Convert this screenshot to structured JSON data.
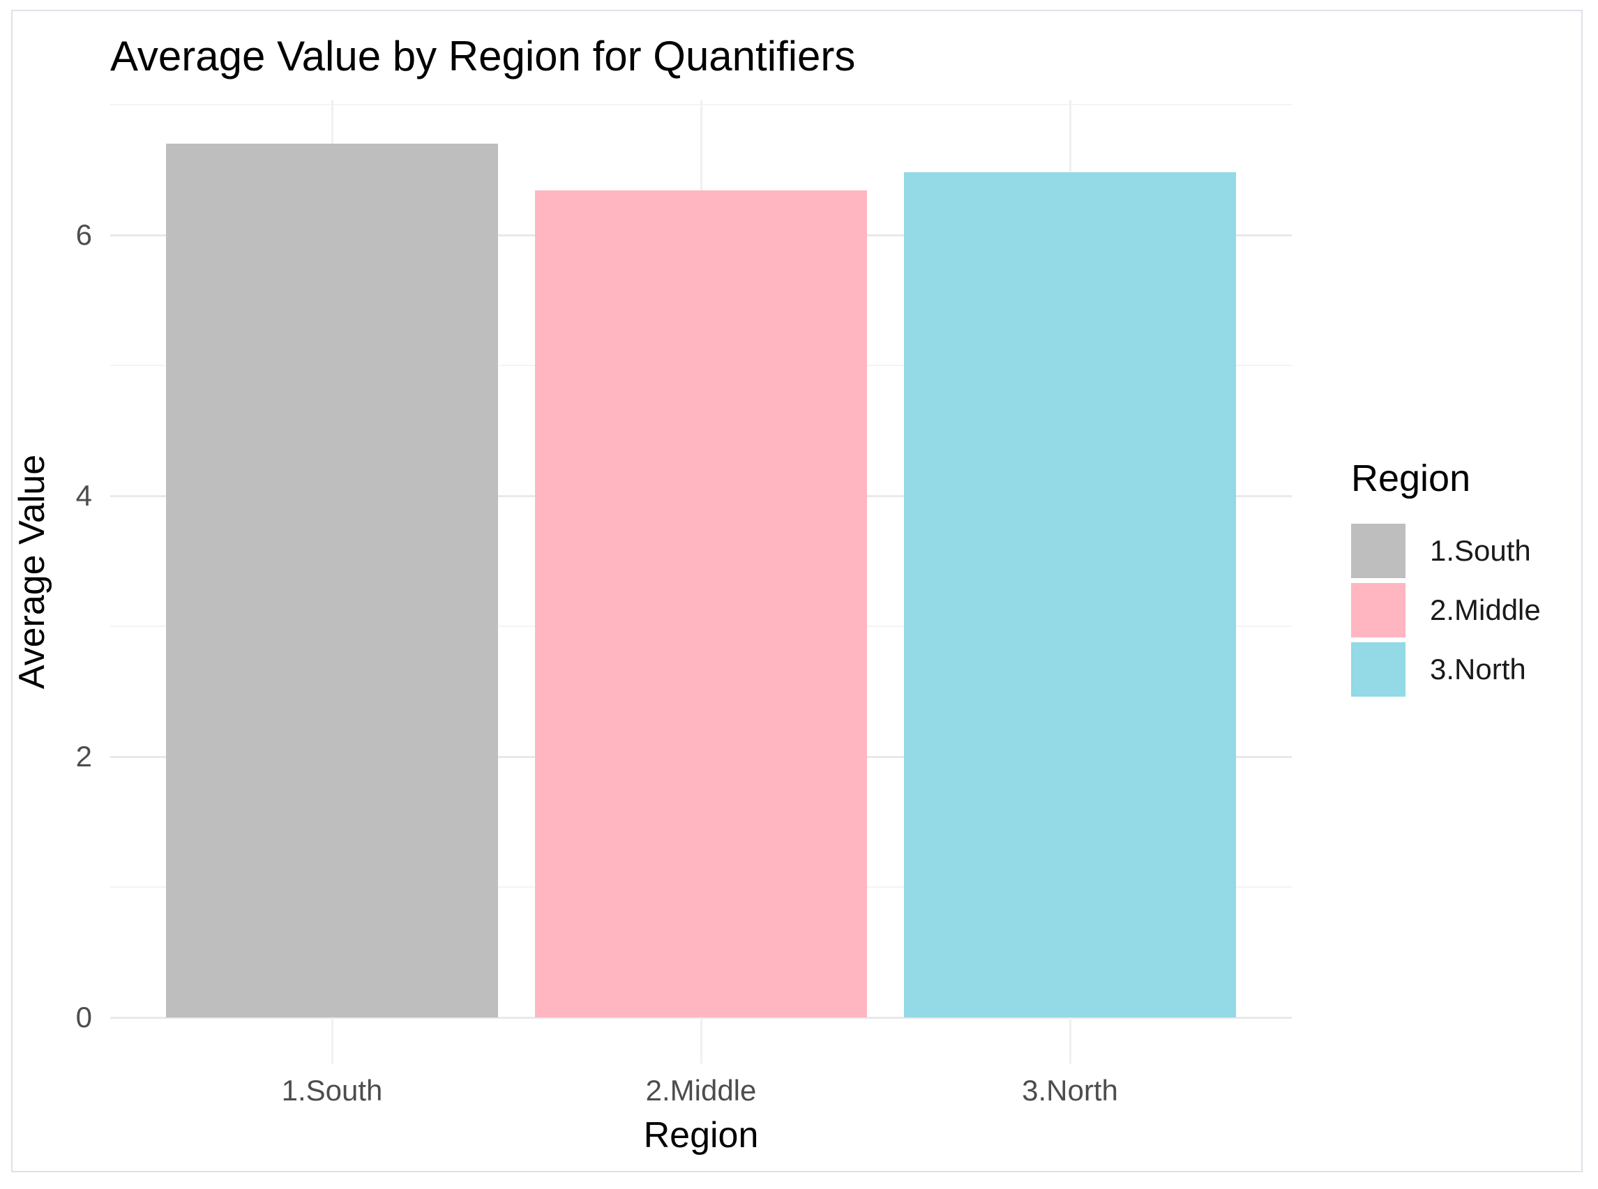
{
  "title": "Average Value by Region for Quantifiers",
  "chart_data": {
    "type": "bar",
    "title": "Average Value by Region for Quantifiers",
    "xlabel": "Region",
    "ylabel": "Average Value",
    "categories": [
      "1.South",
      "2.Middle",
      "3.North"
    ],
    "values": [
      6.7,
      6.34,
      6.48
    ],
    "bar_colors": [
      "#bebebe",
      "#ffb6c1",
      "#93d9e6"
    ],
    "y_ticks": [
      0,
      2,
      4,
      6
    ],
    "y_tick_labels": [
      "0",
      "2",
      "4",
      "6"
    ],
    "y_minor_ticks": [
      1,
      3,
      5,
      7
    ],
    "ylim": [
      0,
      7
    ],
    "grid": true,
    "gridline_color_major": "#e9e9e9",
    "gridline_color_minor": "#f4f4f4",
    "background_color": "#ffffff",
    "legend": {
      "title": "Region",
      "position": "right",
      "entries": [
        {
          "label": "1.South",
          "color": "#bebebe"
        },
        {
          "label": "2.Middle",
          "color": "#ffb6c1"
        },
        {
          "label": "3.North",
          "color": "#93d9e6"
        }
      ]
    }
  }
}
